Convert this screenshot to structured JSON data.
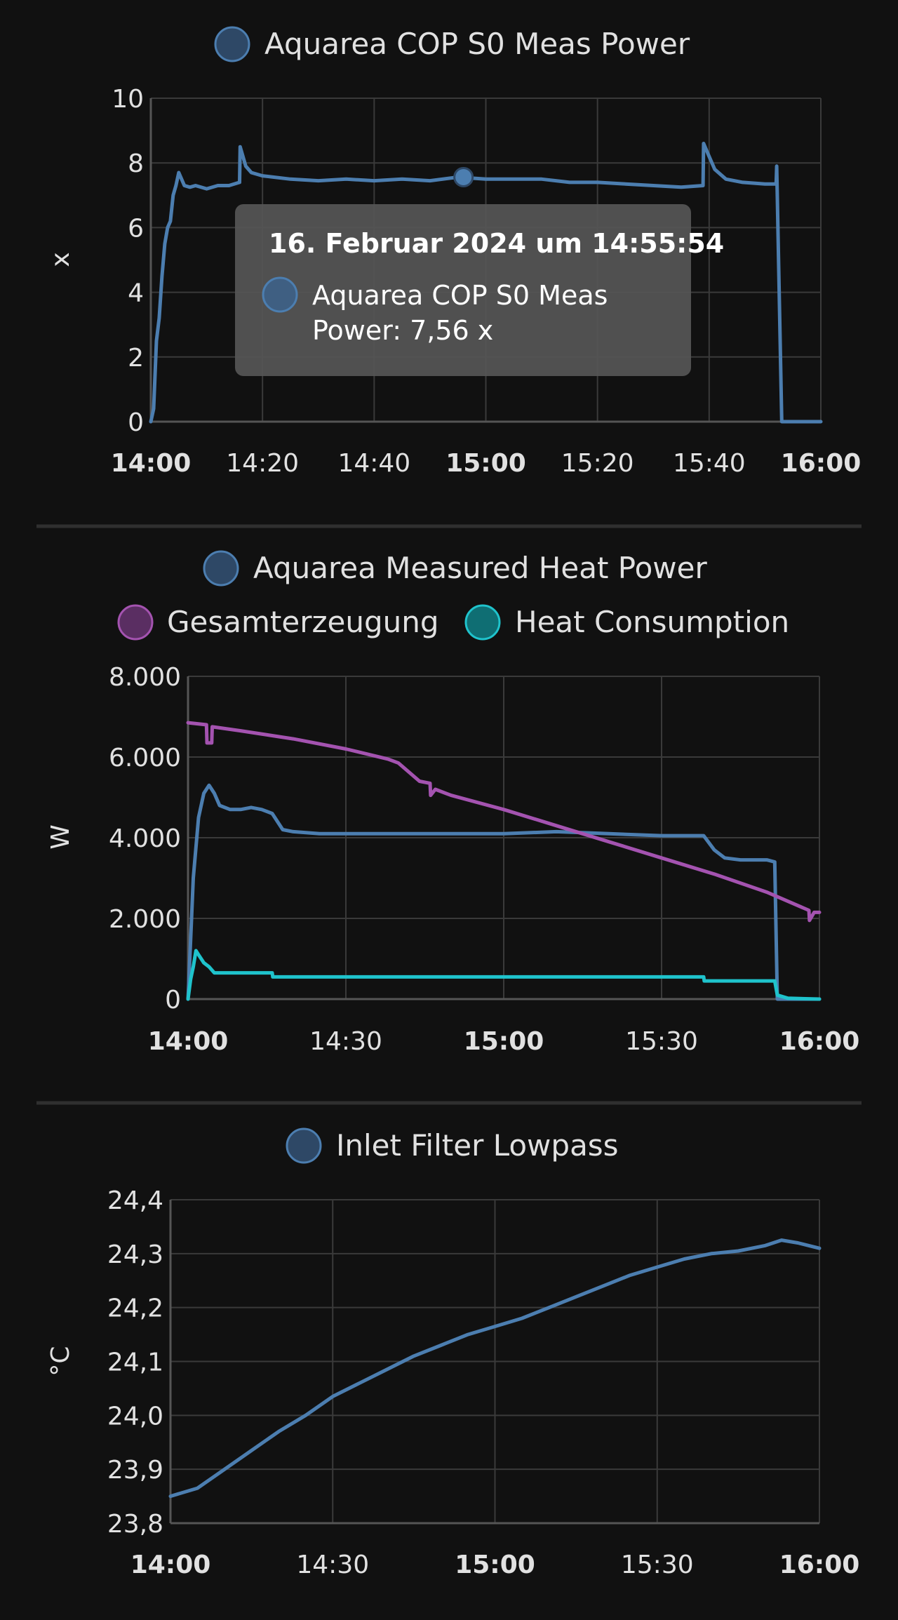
{
  "colors": {
    "background": "#111111",
    "blue": "#4c7eb0",
    "purple": "#a453b0",
    "cyan": "#1fc3cc",
    "grid": "#3a3a3a"
  },
  "chart_data": [
    {
      "type": "line",
      "legend": [
        "Aquarea COP S0 Meas Power"
      ],
      "ylabel": "x",
      "ylim": [
        0,
        10
      ],
      "yticks": [
        "0",
        "2",
        "4",
        "6",
        "8",
        "10"
      ],
      "xticks": [
        "14:00",
        "14:20",
        "14:40",
        "15:00",
        "15:20",
        "15:40",
        "16:00"
      ],
      "xticks_bold": [
        "14:00",
        "15:00",
        "16:00"
      ],
      "x_range_min": [
        0,
        120
      ],
      "series": [
        {
          "name": "Aquarea COP S0 Meas Power",
          "color": "#4c7eb0",
          "x": [
            0,
            0.5,
            1,
            1.5,
            2,
            2.5,
            3,
            3.5,
            4,
            4.5,
            5,
            6,
            7,
            8,
            10,
            12,
            14,
            15.9,
            16,
            16.5,
            17,
            18,
            20,
            25,
            30,
            35,
            40,
            45,
            50,
            55,
            60,
            65,
            70,
            75,
            80,
            85,
            90,
            95,
            98.9,
            99,
            100,
            101,
            103,
            106,
            110,
            112,
            112.1,
            113,
            120
          ],
          "y": [
            0,
            0.4,
            2.5,
            3.2,
            4.5,
            5.5,
            6.0,
            6.2,
            7.0,
            7.3,
            7.7,
            7.3,
            7.25,
            7.3,
            7.2,
            7.3,
            7.3,
            7.4,
            8.5,
            8.2,
            7.9,
            7.7,
            7.6,
            7.5,
            7.45,
            7.5,
            7.45,
            7.5,
            7.45,
            7.56,
            7.5,
            7.5,
            7.5,
            7.4,
            7.4,
            7.35,
            7.3,
            7.25,
            7.3,
            8.6,
            8.2,
            7.8,
            7.5,
            7.4,
            7.35,
            7.35,
            7.9,
            0,
            0
          ]
        }
      ],
      "tooltip": {
        "title": "16. Februar 2024 um 14:55:54",
        "line1": "Aquarea COP S0 Meas",
        "line2": "Power: 7,56 x",
        "marker_x": 56,
        "marker_y": 7.56
      }
    },
    {
      "type": "line",
      "legend": [
        "Aquarea Measured Heat Power",
        "Gesamterzeugung",
        "Heat Consumption"
      ],
      "ylabel": "W",
      "ylim": [
        0,
        8000
      ],
      "yticks": [
        "0",
        "2.000",
        "4.000",
        "6.000",
        "8.000"
      ],
      "xticks": [
        "14:00",
        "14:30",
        "15:00",
        "15:30",
        "16:00"
      ],
      "xticks_bold": [
        "14:00",
        "15:00",
        "16:00"
      ],
      "x_range_min": [
        0,
        120
      ],
      "series": [
        {
          "name": "Aquarea Measured Heat Power",
          "color": "#4c7eb0",
          "x": [
            0,
            0.5,
            1,
            2,
            3,
            4,
            5,
            6,
            8,
            10,
            12,
            14,
            16,
            18,
            20,
            25,
            30,
            40,
            50,
            60,
            70,
            80,
            90,
            98,
            100,
            102,
            105,
            110,
            111.5,
            112,
            113,
            120
          ],
          "y": [
            0,
            1500,
            3000,
            4500,
            5100,
            5300,
            5100,
            4800,
            4700,
            4700,
            4750,
            4700,
            4600,
            4200,
            4150,
            4100,
            4100,
            4100,
            4100,
            4100,
            4150,
            4100,
            4050,
            4050,
            3700,
            3500,
            3450,
            3450,
            3400,
            0,
            0,
            0
          ]
        },
        {
          "name": "Gesamterzeugung",
          "color": "#a453b0",
          "x": [
            0,
            3.5,
            3.6,
            4.5,
            4.6,
            10,
            20,
            30,
            38,
            40,
            44,
            46,
            46.1,
            47,
            50,
            60,
            70,
            80,
            90,
            100,
            110,
            118,
            118.1,
            119,
            120
          ],
          "y": [
            6850,
            6800,
            6350,
            6350,
            6750,
            6650,
            6450,
            6200,
            5950,
            5850,
            5400,
            5350,
            5050,
            5200,
            5050,
            4700,
            4300,
            3900,
            3500,
            3100,
            2650,
            2200,
            1950,
            2150,
            2150
          ]
        },
        {
          "name": "Heat Consumption",
          "color": "#1fc3cc",
          "x": [
            0,
            0.5,
            1,
            1.5,
            2,
            3,
            4,
            5,
            10,
            15,
            16,
            16.1,
            20,
            40,
            60,
            80,
            97,
            98,
            98.1,
            110,
            111.5,
            112,
            114,
            120
          ],
          "y": [
            0,
            500,
            800,
            1200,
            1100,
            900,
            800,
            650,
            650,
            650,
            650,
            550,
            550,
            550,
            550,
            550,
            550,
            550,
            450,
            450,
            450,
            100,
            20,
            0
          ]
        }
      ]
    },
    {
      "type": "line",
      "legend": [
        "Inlet Filter Lowpass"
      ],
      "ylabel": "°C",
      "ylim": [
        23.8,
        24.4
      ],
      "yticks": [
        "23,8",
        "23,9",
        "24,0",
        "24,1",
        "24,2",
        "24,3",
        "24,4"
      ],
      "xticks": [
        "14:00",
        "14:30",
        "15:00",
        "15:30",
        "16:00"
      ],
      "xticks_bold": [
        "14:00",
        "15:00",
        "16:00"
      ],
      "x_range_min": [
        0,
        120
      ],
      "series": [
        {
          "name": "Inlet Filter Lowpass",
          "color": "#4c7eb0",
          "x": [
            0,
            5,
            10,
            15,
            20,
            25,
            30,
            35,
            40,
            45,
            50,
            55,
            60,
            65,
            70,
            75,
            80,
            85,
            90,
            95,
            100,
            105,
            110,
            113,
            116,
            120
          ],
          "y": [
            23.85,
            23.865,
            23.9,
            23.935,
            23.97,
            24.0,
            24.035,
            24.06,
            24.085,
            24.11,
            24.13,
            24.15,
            24.165,
            24.18,
            24.2,
            24.22,
            24.24,
            24.26,
            24.275,
            24.29,
            24.3,
            24.305,
            24.315,
            24.325,
            24.32,
            24.31
          ]
        }
      ]
    }
  ]
}
